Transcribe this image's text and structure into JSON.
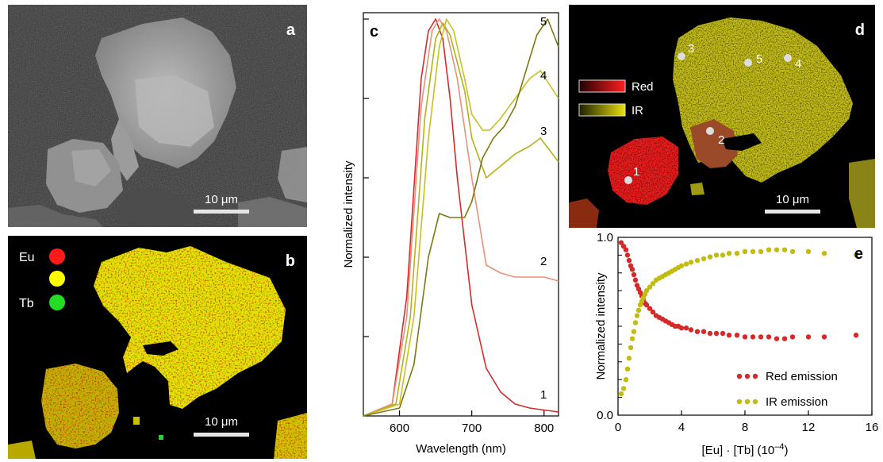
{
  "panels": {
    "a": {
      "label": "a",
      "scale_bar": "10 μm"
    },
    "b": {
      "label": "b",
      "scale_bar": "10 μm",
      "legend": [
        "Eu",
        "Tb"
      ],
      "legend_colors": [
        "#ff1a1a",
        "#ffff00",
        "#22dd22"
      ]
    },
    "c": {
      "label": "c"
    },
    "d": {
      "label": "d",
      "scale_bar": "10 μm",
      "legend": [
        "Red",
        "IR"
      ],
      "points": [
        "1",
        "2",
        "3",
        "4",
        "5"
      ]
    },
    "e": {
      "label": "e"
    }
  },
  "chart_data": [
    {
      "id": "c",
      "type": "line",
      "xlabel": "Wavelength (nm)",
      "ylabel": "Normalized intensity",
      "xlim": [
        550,
        820
      ],
      "ylim": [
        0,
        1.0
      ],
      "xticks": [
        600,
        700,
        800
      ],
      "series": [
        {
          "name": "1",
          "color": "#d42a2a",
          "x": [
            550,
            590,
            610,
            630,
            640,
            650,
            660,
            670,
            680,
            700,
            720,
            740,
            760,
            780,
            800,
            820
          ],
          "y": [
            0,
            0.03,
            0.3,
            0.85,
            0.97,
            1.0,
            0.95,
            0.8,
            0.6,
            0.28,
            0.12,
            0.06,
            0.03,
            0.02,
            0.015,
            0.01
          ]
        },
        {
          "name": "2",
          "color": "#e8907a",
          "x": [
            550,
            590,
            610,
            630,
            645,
            655,
            665,
            680,
            700,
            720,
            740,
            760,
            780,
            800,
            820
          ],
          "y": [
            0,
            0.03,
            0.25,
            0.78,
            0.97,
            1.0,
            0.97,
            0.85,
            0.6,
            0.38,
            0.36,
            0.35,
            0.35,
            0.35,
            0.34
          ]
        },
        {
          "name": "3",
          "color": "#b5b11a",
          "x": [
            550,
            595,
            615,
            635,
            650,
            660,
            670,
            690,
            700,
            720,
            740,
            760,
            780,
            795,
            820
          ],
          "y": [
            0,
            0.03,
            0.25,
            0.75,
            0.95,
            0.99,
            0.96,
            0.82,
            0.7,
            0.6,
            0.63,
            0.66,
            0.68,
            0.7,
            0.64
          ]
        },
        {
          "name": "4",
          "color": "#c8c020",
          "x": [
            550,
            600,
            620,
            640,
            655,
            665,
            675,
            690,
            700,
            715,
            725,
            740,
            760,
            780,
            795,
            820
          ],
          "y": [
            0,
            0.03,
            0.25,
            0.7,
            0.93,
            1.0,
            0.97,
            0.85,
            0.76,
            0.72,
            0.72,
            0.75,
            0.8,
            0.85,
            0.87,
            0.8
          ]
        },
        {
          "name": "5",
          "color": "#7a7a10",
          "x": [
            550,
            600,
            620,
            640,
            655,
            670,
            690,
            700,
            715,
            730,
            745,
            760,
            775,
            790,
            805,
            820
          ],
          "y": [
            0,
            0.02,
            0.13,
            0.4,
            0.51,
            0.5,
            0.5,
            0.54,
            0.65,
            0.7,
            0.73,
            0.78,
            0.87,
            0.96,
            1.0,
            0.93
          ]
        }
      ]
    },
    {
      "id": "e",
      "type": "scatter",
      "xlabel": "[Eu] · [Tb] (10",
      "xlabel_sup": "–4",
      "xlabel_end": ")",
      "ylabel": "Normalized intensity",
      "xlim": [
        0,
        16
      ],
      "ylim": [
        0,
        1.0
      ],
      "xticks": [
        0,
        4,
        8,
        12,
        16
      ],
      "yticks": [
        "0.0",
        "1.0"
      ],
      "legend_placement": "bottom-right",
      "series": [
        {
          "name": "Red emission",
          "color": "#d42a2a",
          "x": [
            0.2,
            0.35,
            0.5,
            0.6,
            0.7,
            0.8,
            0.9,
            1.0,
            1.1,
            1.2,
            1.3,
            1.4,
            1.5,
            1.6,
            1.7,
            1.8,
            2.0,
            2.2,
            2.4,
            2.6,
            2.8,
            3.0,
            3.2,
            3.4,
            3.6,
            3.8,
            4.0,
            4.3,
            4.6,
            5.0,
            5.4,
            5.8,
            6.2,
            6.6,
            7.0,
            7.5,
            8.0,
            8.5,
            9.0,
            9.5,
            10.0,
            10.5,
            11.0,
            12.0,
            13.0,
            15.0
          ],
          "y": [
            0.97,
            0.95,
            0.93,
            0.9,
            0.87,
            0.84,
            0.82,
            0.79,
            0.76,
            0.73,
            0.71,
            0.69,
            0.67,
            0.65,
            0.63,
            0.62,
            0.6,
            0.58,
            0.56,
            0.55,
            0.54,
            0.53,
            0.52,
            0.51,
            0.5,
            0.5,
            0.49,
            0.49,
            0.48,
            0.47,
            0.47,
            0.46,
            0.46,
            0.46,
            0.45,
            0.45,
            0.44,
            0.44,
            0.44,
            0.44,
            0.43,
            0.43,
            0.44,
            0.44,
            0.44,
            0.45
          ]
        },
        {
          "name": "IR emission",
          "color": "#c2bc10",
          "x": [
            0.2,
            0.35,
            0.5,
            0.6,
            0.7,
            0.8,
            0.9,
            1.0,
            1.1,
            1.2,
            1.3,
            1.4,
            1.5,
            1.6,
            1.7,
            1.8,
            2.0,
            2.2,
            2.4,
            2.6,
            2.8,
            3.0,
            3.2,
            3.4,
            3.6,
            3.8,
            4.0,
            4.3,
            4.6,
            5.0,
            5.4,
            5.8,
            6.2,
            6.6,
            7.0,
            7.5,
            8.0,
            8.5,
            9.0,
            9.5,
            10.0,
            10.5,
            11.0,
            12.0,
            13.0,
            15.0
          ],
          "y": [
            0.12,
            0.15,
            0.2,
            0.26,
            0.32,
            0.38,
            0.43,
            0.47,
            0.52,
            0.56,
            0.59,
            0.62,
            0.64,
            0.66,
            0.68,
            0.7,
            0.72,
            0.74,
            0.76,
            0.77,
            0.78,
            0.79,
            0.8,
            0.81,
            0.82,
            0.83,
            0.84,
            0.85,
            0.86,
            0.87,
            0.88,
            0.89,
            0.9,
            0.9,
            0.91,
            0.91,
            0.92,
            0.92,
            0.92,
            0.93,
            0.93,
            0.93,
            0.92,
            0.92,
            0.91,
            0.9
          ]
        }
      ]
    }
  ]
}
